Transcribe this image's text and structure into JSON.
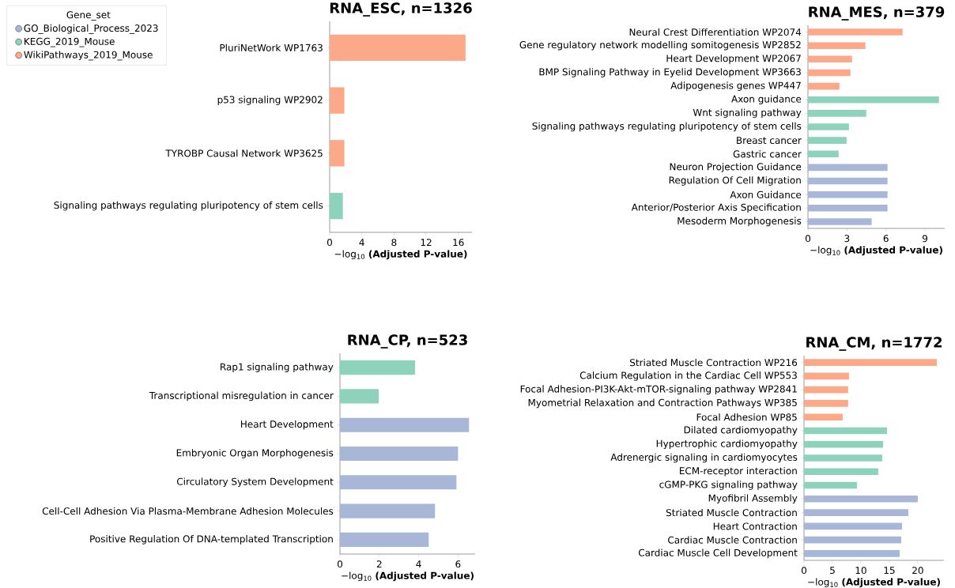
{
  "chart_data": [
    {
      "type": "bar",
      "orientation": "horizontal",
      "title": "RNA_ESC, n=1326",
      "xlabel": "−log$_{10}$ **(Adjusted P-value)**",
      "legend": "top left",
      "legend_title": "Gene_set",
      "categories": [
        "PluriNetWork WP1763",
        "p53 signaling WP2902",
        "TYROBP Causal Network WP3625",
        "Signaling pathways regulating pluripotency of stem cells"
      ],
      "series": [
        {
          "name": "GO_Biological_Process_2023",
          "color": "#a8b6d8",
          "values": [
            null,
            null,
            null,
            null
          ]
        },
        {
          "name": "KEGG_2019_Mouse",
          "color": "#8dd3bc",
          "values": [
            null,
            null,
            null,
            1.64
          ]
        },
        {
          "name": "WikiPathways_2019_Mouse",
          "color": "#fca98a",
          "values": [
            16.9,
            1.83,
            1.83,
            null
          ]
        }
      ],
      "xlim": [
        0,
        17.7
      ],
      "xticks": [
        0,
        4,
        8,
        12,
        16
      ]
    },
    {
      "type": "bar",
      "orientation": "horizontal",
      "title": "RNA_MES, n=379",
      "xlabel": "−log$_{10}$ **(Adjusted P-value)**",
      "categories": [
        "Neural Crest Differentiation WP2074",
        "Gene regulatory network modelling somitogenesis  WP2852",
        "Heart Development WP2067",
        "BMP Signaling Pathway in Eyelid Development WP3663",
        "Adipogenesis genes WP447",
        "Axon guidance",
        "Wnt signaling pathway",
        "Signaling pathways regulating pluripotency of stem cells",
        "Breast cancer",
        "Gastric cancer",
        "Neuron Projection Guidance",
        "Regulation Of Cell Migration",
        "Axon Guidance",
        "Anterior/Posterior Axis Specification",
        "Mesoderm Morphogenesis"
      ],
      "series": [
        {
          "color": "#a8b6d8",
          "values": [
            null,
            null,
            null,
            null,
            null,
            null,
            null,
            null,
            null,
            null,
            6.12,
            6.12,
            6.12,
            6.12,
            4.9
          ]
        },
        {
          "color": "#8dd3bc",
          "values": [
            null,
            null,
            null,
            null,
            null,
            10.08,
            4.48,
            3.15,
            2.97,
            2.36,
            null,
            null,
            null,
            null,
            null
          ]
        },
        {
          "color": "#fca98a",
          "values": [
            7.28,
            4.42,
            3.39,
            3.27,
            2.42,
            null,
            null,
            null,
            null,
            null,
            null,
            null,
            null,
            null,
            null
          ]
        }
      ],
      "xlim": [
        0,
        10.52
      ],
      "xticks": [
        0,
        3,
        6,
        9
      ]
    },
    {
      "type": "bar",
      "orientation": "horizontal",
      "title": "RNA_CP, n=523",
      "xlabel": "−log$_{10}$ **(Adjusted P-value)**",
      "categories": [
        "Rap1 signaling pathway",
        "Transcriptional misregulation in cancer",
        "Heart Development",
        "Embryonic Organ Morphogenesis",
        "Circulatory System Development",
        "Cell-Cell Adhesion Via Plasma-Membrane Adhesion Molecules",
        "Positive Regulation Of DNA-templated Transcription"
      ],
      "series": [
        {
          "color": "#a8b6d8",
          "values": [
            null,
            null,
            6.56,
            6.0,
            5.92,
            4.83,
            4.51
          ]
        },
        {
          "color": "#8dd3bc",
          "values": [
            3.82,
            1.97,
            null,
            null,
            null,
            null,
            null
          ]
        }
      ],
      "xlim": [
        0,
        6.87
      ],
      "xticks": [
        0,
        2,
        4,
        6
      ]
    },
    {
      "type": "bar",
      "orientation": "horizontal",
      "title": "RNA_CM, n=1772",
      "xlabel": "−log$_{10}$ **(Adjusted P-value)**",
      "categories": [
        "Striated Muscle Contraction WP216",
        "Calcium Regulation in the Cardiac Cell WP553",
        "Focal Adhesion-PI3K-Akt-mTOR-signaling pathway WP2841",
        "Myometrial Relaxation and Contraction Pathways WP385",
        "Focal Adhesion WP85",
        "Dilated cardiomyopathy",
        "Hypertrophic cardiomyopathy",
        "Adrenergic signaling in cardiomyocytes",
        "ECM-receptor interaction",
        "cGMP-PKG signaling pathway",
        "Myofibril Assembly",
        "Striated Muscle Contraction",
        "Heart Contraction",
        "Cardiac Muscle Contraction",
        "Cardiac Muscle Cell Development"
      ],
      "series": [
        {
          "color": "#a8b6d8",
          "values": [
            null,
            null,
            null,
            null,
            null,
            null,
            null,
            null,
            null,
            null,
            20.0,
            18.34,
            17.23,
            17.09,
            16.81
          ]
        },
        {
          "color": "#8dd3bc",
          "values": [
            null,
            null,
            null,
            null,
            null,
            14.6,
            13.9,
            13.75,
            13.05,
            9.3,
            null,
            null,
            null,
            null,
            null
          ]
        },
        {
          "color": "#fca98a",
          "values": [
            23.35,
            7.9,
            7.76,
            7.76,
            6.79,
            null,
            null,
            null,
            null,
            null,
            null,
            null,
            null,
            null,
            null
          ]
        }
      ],
      "xlim": [
        0,
        24.6
      ],
      "xticks": [
        0,
        5,
        10,
        15,
        20
      ]
    }
  ]
}
